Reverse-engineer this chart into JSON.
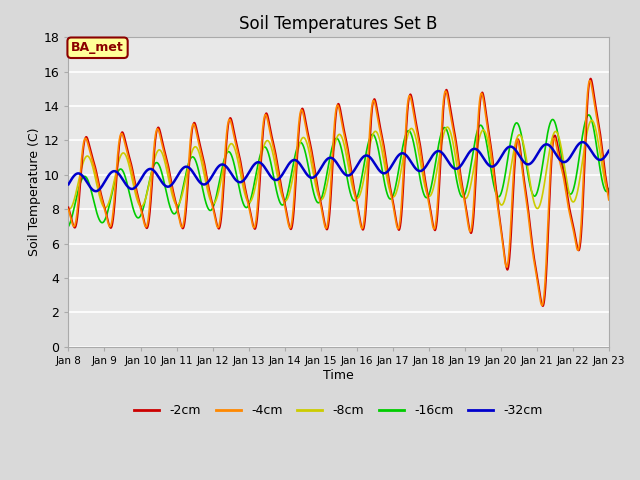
{
  "title": "Soil Temperatures Set B",
  "xlabel": "Time",
  "ylabel": "Soil Temperature (C)",
  "ylim": [
    0,
    18
  ],
  "n_days": 15,
  "background_color": "#d9d9d9",
  "plot_bg_color": "#e8e8e8",
  "annotation_text": "BA_met",
  "annotation_bg": "#ffff99",
  "annotation_border": "#8b0000",
  "annotation_text_color": "#8b0000",
  "series": {
    "-2cm": {
      "color": "#cc0000",
      "lw": 1.2
    },
    "-4cm": {
      "color": "#ff8800",
      "lw": 1.2
    },
    "-8cm": {
      "color": "#cccc00",
      "lw": 1.2
    },
    "-16cm": {
      "color": "#00cc00",
      "lw": 1.2
    },
    "-32cm": {
      "color": "#0000cc",
      "lw": 1.8
    }
  },
  "tick_labels": [
    "Jan 8",
    "Jan 9",
    "Jan 10",
    "Jan 11",
    "Jan 12",
    "Jan 13",
    "Jan 14",
    "Jan 15",
    "Jan 16",
    "Jan 17",
    "Jan 18",
    "Jan 19",
    "Jan 20",
    "Jan 21",
    "Jan 22",
    "Jan 23"
  ],
  "yticks": [
    0,
    2,
    4,
    6,
    8,
    10,
    12,
    14,
    16,
    18
  ]
}
